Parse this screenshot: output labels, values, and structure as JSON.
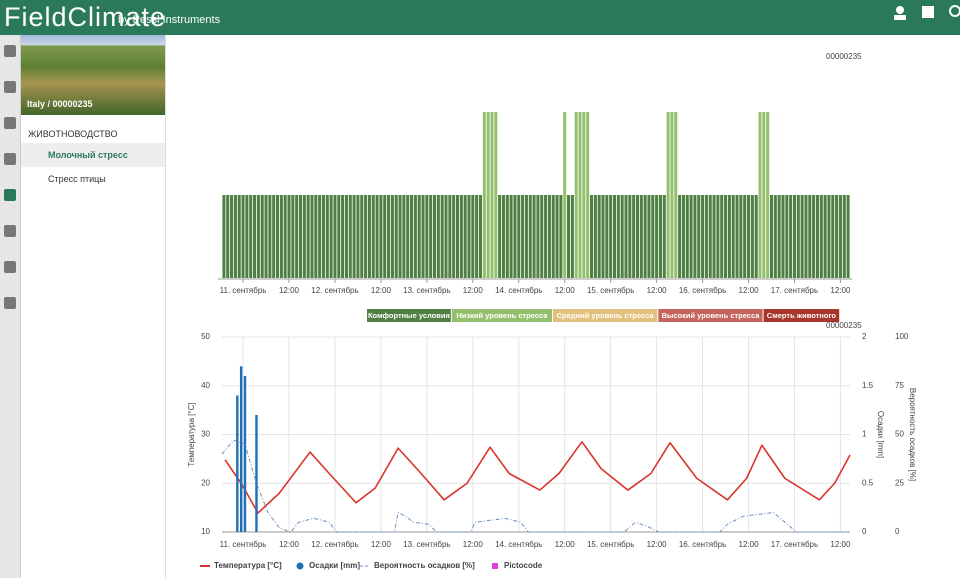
{
  "header": {
    "brand": "FieldClimate",
    "tagline": "by Pessl Instruments"
  },
  "sidebar": {
    "station": "Italy / 00000235",
    "section": "ЖИВОТНОВОДСТВО",
    "items": [
      "Молочный стресс",
      "Стресс птицы"
    ]
  },
  "chart_data": [
    {
      "type": "bar",
      "station_label": "00000235",
      "levels": [
        {
          "name": "Комфортные условия",
          "color": "#4f7f43"
        },
        {
          "name": "Низкий уровень стресса",
          "color": "#94c06e"
        },
        {
          "name": "Средний уровень стресса",
          "color": "#e3c07e"
        },
        {
          "name": "Высокий уровень стресса",
          "color": "#c4645c"
        },
        {
          "name": "Смерть животного",
          "color": "#a6352b"
        }
      ],
      "values": [
        1,
        1,
        1,
        1,
        1,
        1,
        1,
        1,
        1,
        1,
        1,
        1,
        1,
        1,
        1,
        1,
        1,
        1,
        1,
        1,
        1,
        1,
        1,
        1,
        1,
        1,
        1,
        1,
        1,
        1,
        1,
        1,
        1,
        1,
        1,
        1,
        1,
        1,
        1,
        1,
        1,
        1,
        1,
        1,
        1,
        1,
        1,
        1,
        1,
        1,
        1,
        1,
        1,
        1,
        1,
        1,
        1,
        1,
        1,
        1,
        1,
        1,
        1,
        1,
        1,
        1,
        1,
        1,
        2,
        2,
        2,
        2,
        1,
        1,
        1,
        1,
        1,
        1,
        1,
        1,
        1,
        1,
        1,
        1,
        1,
        1,
        1,
        1,
        1,
        2,
        1,
        1,
        2,
        2,
        2,
        2,
        1,
        1,
        1,
        1,
        1,
        1,
        1,
        1,
        1,
        1,
        1,
        1,
        1,
        1,
        1,
        1,
        1,
        1,
        1,
        1,
        2,
        2,
        2,
        1,
        1,
        1,
        1,
        1,
        1,
        1,
        1,
        1,
        1,
        1,
        1,
        1,
        1,
        1,
        1,
        1,
        1,
        1,
        1,
        1,
        2,
        2,
        2,
        1,
        1,
        1,
        1,
        1,
        1,
        1,
        1,
        1,
        1,
        1,
        1,
        1,
        1,
        1,
        1,
        1,
        1,
        1,
        1,
        1
      ],
      "xticks": [
        {
          "value": 5.5,
          "label": "11. сентябрь"
        },
        {
          "value": 17.5,
          "label": "12:00"
        },
        {
          "value": 29.5,
          "label": "12. сентябрь"
        },
        {
          "value": 41.5,
          "label": "12:00"
        },
        {
          "value": 53.5,
          "label": "13. сентябрь"
        },
        {
          "value": 65.5,
          "label": "12:00"
        },
        {
          "value": 77.5,
          "label": "14. сентябрь"
        },
        {
          "value": 89.5,
          "label": "12:00"
        },
        {
          "value": 101.5,
          "label": "15. сентябрь"
        },
        {
          "value": 113.5,
          "label": "12:00"
        },
        {
          "value": 125.5,
          "label": "16. сентябрь"
        },
        {
          "value": 137.5,
          "label": "12:00"
        },
        {
          "value": 149.5,
          "label": "17. сентябрь"
        },
        {
          "value": 161.5,
          "label": "12:00"
        }
      ]
    },
    {
      "type": "combo",
      "station_label": "00000235",
      "ylabel": "Температура [°C]",
      "y2label": "Осадки [mm]",
      "y3label": "Вероятность осадков [%]",
      "xlim": [
        0,
        164
      ],
      "ylim": [
        10,
        50
      ],
      "yticks": [
        10,
        20,
        30,
        40,
        50
      ],
      "y2lim": [
        0,
        2
      ],
      "y2ticks": [
        0,
        0.5,
        1,
        1.5,
        2
      ],
      "y3lim": [
        0,
        100
      ],
      "y3ticks": [
        0,
        25,
        50,
        75,
        100
      ],
      "grid": true,
      "xticks": [
        {
          "value": 5.5,
          "label": "11. сентябрь"
        },
        {
          "value": 17.5,
          "label": "12:00"
        },
        {
          "value": 29.5,
          "label": "12. сентябрь"
        },
        {
          "value": 41.5,
          "label": "12:00"
        },
        {
          "value": 53.5,
          "label": "13. сентябрь"
        },
        {
          "value": 65.5,
          "label": "12:00"
        },
        {
          "value": 77.5,
          "label": "14. сентябрь"
        },
        {
          "value": 89.5,
          "label": "12:00"
        },
        {
          "value": 101.5,
          "label": "15. сентябрь"
        },
        {
          "value": 113.5,
          "label": "12:00"
        },
        {
          "value": 125.5,
          "label": "16. сентябрь"
        },
        {
          "value": 137.5,
          "label": "12:00"
        },
        {
          "value": 149.5,
          "label": "17. сентябрь"
        },
        {
          "value": 161.5,
          "label": "12:00"
        }
      ],
      "series": [
        {
          "name": "Температура [°C]",
          "kind": "line",
          "color": "#d9342b",
          "x": [
            0.8,
            5,
            9.4,
            15,
            23,
            28,
            35,
            40,
            46,
            52,
            58,
            64,
            70,
            75,
            83,
            88,
            94,
            99,
            106,
            112,
            117,
            124,
            132,
            137,
            141,
            147,
            156,
            160,
            164
          ],
          "values": [
            24.8,
            20,
            13.9,
            18,
            26.4,
            22,
            16,
            19,
            27.2,
            22,
            16.6,
            20,
            27.4,
            22,
            18.6,
            22,
            28.5,
            23,
            18.6,
            22,
            28.3,
            21,
            16.6,
            21,
            27.8,
            21,
            16.6,
            20,
            25.8
          ]
        },
        {
          "name": "Осадки [mm]",
          "kind": "bar",
          "axis": "y2",
          "color": "#1f6fb5",
          "x": [
            4,
            5,
            6,
            9
          ],
          "values": [
            1.4,
            1.7,
            1.6,
            1.2
          ]
        },
        {
          "name": "Вероятность осадков [%]",
          "kind": "dashline",
          "axis": "y3",
          "color": "#6a8fc0",
          "x": [
            0,
            3,
            6,
            9,
            12,
            15,
            18,
            20,
            24,
            28,
            30,
            45,
            46,
            48,
            50,
            54,
            56,
            65,
            66,
            70,
            74,
            78,
            80,
            105,
            108,
            111,
            114,
            130,
            132,
            136,
            140,
            144,
            147,
            150,
            164
          ],
          "values": [
            40,
            47,
            45,
            25,
            10,
            2,
            0,
            5,
            7,
            5,
            0,
            0,
            10,
            8,
            5,
            4,
            0,
            0,
            5,
            6,
            7,
            5,
            0,
            0,
            5,
            3,
            0,
            0,
            4,
            8,
            9,
            10,
            5,
            0,
            0
          ]
        },
        {
          "name": "Pictocode",
          "kind": "legend-only",
          "color": "#e040e0"
        }
      ]
    }
  ]
}
